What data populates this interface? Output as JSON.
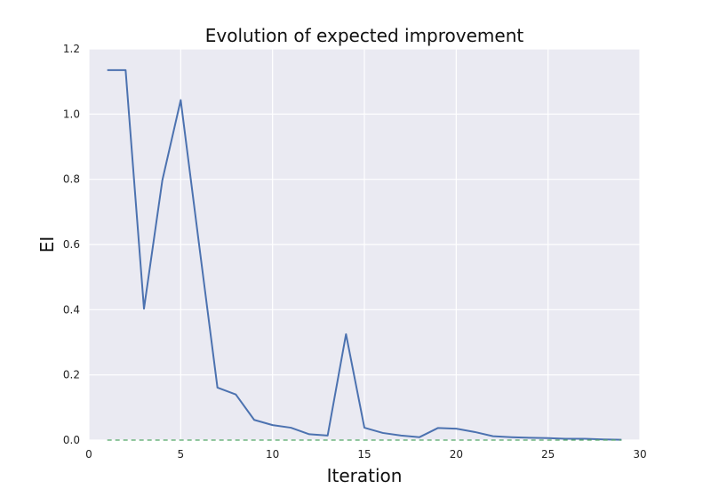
{
  "chart_data": {
    "type": "line",
    "title": "Evolution of expected improvement",
    "xlabel": "Iteration",
    "ylabel": "EI",
    "xlim": [
      0,
      30
    ],
    "ylim": [
      0,
      1.2
    ],
    "xticks": [
      0,
      5,
      10,
      15,
      20,
      25,
      30
    ],
    "yticks": [
      0.0,
      0.2,
      0.4,
      0.6,
      0.8,
      1.0,
      1.2
    ],
    "xtick_labels": [
      "0",
      "5",
      "10",
      "15",
      "20",
      "25",
      "30"
    ],
    "ytick_labels": [
      "0.0",
      "0.2",
      "0.4",
      "0.6",
      "0.8",
      "1.0",
      "1.2"
    ],
    "grid": true,
    "series": [
      {
        "color": "#4c72b0",
        "style": "solid",
        "x": [
          1,
          2,
          3,
          4,
          5,
          6,
          7,
          8,
          9,
          10,
          11,
          12,
          13,
          14,
          15,
          16,
          17,
          18,
          19,
          20,
          21,
          22,
          23,
          24,
          25,
          26,
          27,
          28,
          29
        ],
        "values": [
          1.135,
          1.135,
          0.403,
          0.797,
          1.043,
          0.6,
          0.161,
          0.14,
          0.062,
          0.046,
          0.038,
          0.018,
          0.014,
          0.325,
          0.038,
          0.022,
          0.014,
          0.009,
          0.037,
          0.035,
          0.025,
          0.012,
          0.009,
          0.007,
          0.006,
          0.004,
          0.004,
          0.002,
          0.001
        ]
      },
      {
        "color": "#55a868",
        "style": "dashed",
        "x": [
          1,
          29
        ],
        "values": [
          0,
          0
        ]
      }
    ]
  }
}
